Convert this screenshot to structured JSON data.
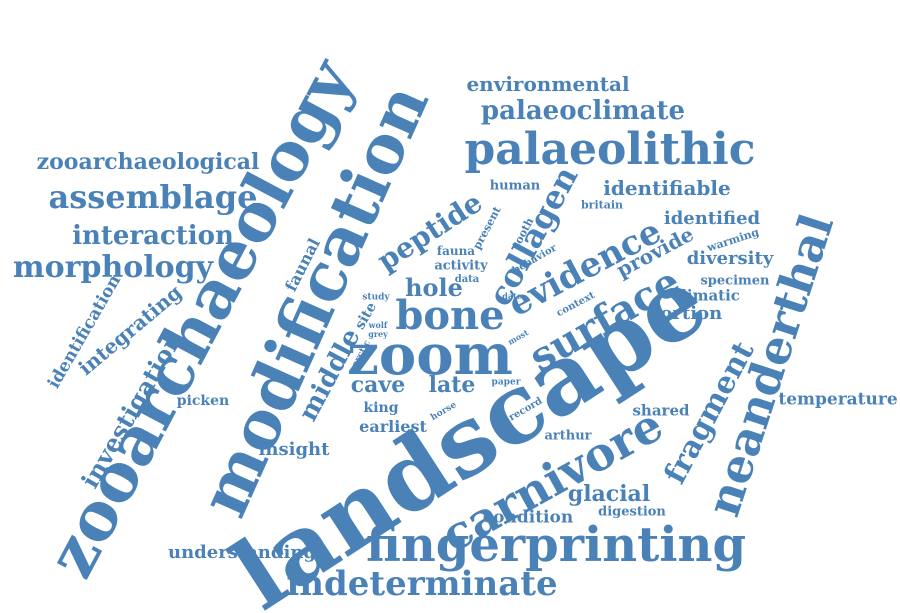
{
  "cloud": {
    "color": "#4a82b8",
    "words": [
      "landscape",
      "zooarchaeology",
      "modification",
      "zoom",
      "fingerprinting",
      "neanderthal",
      "carnivore",
      "palaeolithic",
      "bone",
      "indeterminate",
      "surface",
      "evidence",
      "collagen",
      "assemblage",
      "morphology",
      "peptide",
      "interaction",
      "zooarchaeological",
      "palaeoclimate",
      "fragment",
      "investigation",
      "environmental",
      "identifiable",
      "hole",
      "cave",
      "late",
      "middle",
      "integrating",
      "identification",
      "understanding",
      "glacial",
      "insight",
      "provide",
      "identified",
      "diversity",
      "condition",
      "temperature",
      "portion",
      "faunal",
      "shared",
      "earliest",
      "king",
      "climatic",
      "specimen",
      "arthur",
      "warming",
      "human",
      "picken",
      "digestion",
      "site",
      "activity",
      "fauna",
      "present",
      "britain",
      "tooth",
      "behavior",
      "context",
      "record",
      "horse",
      "paper",
      "date",
      "arctic",
      "data",
      "study",
      "wolf",
      "grey",
      "most"
    ]
  }
}
